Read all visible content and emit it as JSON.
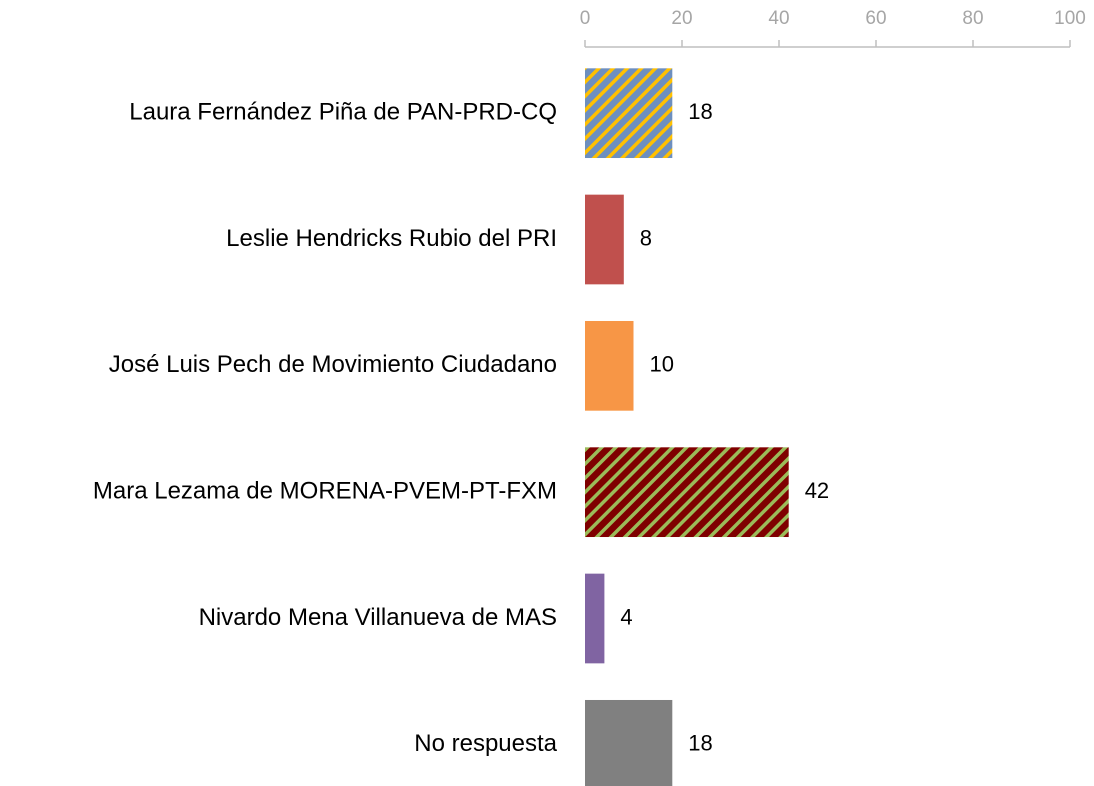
{
  "chart_data": {
    "type": "bar",
    "orientation": "horizontal",
    "categories": [
      "Laura Fernández Piña de PAN-PRD-CQ",
      "Leslie Hendricks Rubio del PRI",
      "José Luis Pech de Movimiento Ciudadano",
      "Mara Lezama de MORENA-PVEM-PT-FXM",
      "Nivardo Mena Villanueva de MAS",
      "No respuesta"
    ],
    "values": [
      18,
      8,
      10,
      42,
      4,
      18
    ],
    "colors": [
      "#6d8fbf",
      "#c0504d",
      "#f79646",
      "#7f0000",
      "#8064a2",
      "#808080"
    ],
    "hatch_colors": [
      "#ffc000",
      null,
      null,
      "#9bbb59",
      null,
      null
    ],
    "xlim": [
      0,
      100
    ],
    "xticks": [
      0,
      20,
      40,
      60,
      80,
      100
    ],
    "axis_position": "top",
    "grid": false,
    "data_labels": true
  }
}
